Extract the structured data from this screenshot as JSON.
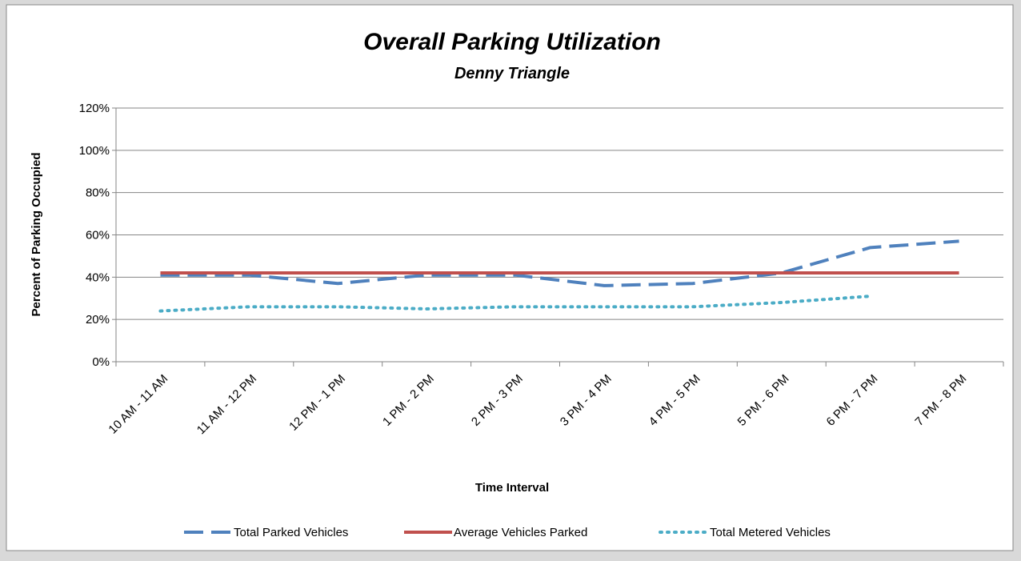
{
  "chart_data": {
    "type": "line",
    "title": "Overall Parking Utilization",
    "subtitle": "Denny Triangle",
    "x_label": "Time Interval",
    "y_label": "Percent of Parking Occupied",
    "categories": [
      "10 AM - 11 AM",
      "11 AM - 12 PM",
      "12 PM - 1 PM",
      "1 PM - 2 PM",
      "2 PM - 3 PM",
      "3 PM - 4 PM",
      "4 PM - 5 PM",
      "5 PM - 6 PM",
      "6 PM - 7 PM",
      "7 PM - 8 PM"
    ],
    "series": [
      {
        "name": "Total Parked Vehicles",
        "color": "#4f81bd",
        "dash": "dashed",
        "values": [
          41,
          41,
          37,
          41,
          41,
          36,
          37,
          42,
          54,
          57
        ]
      },
      {
        "name": "Average Vehicles Parked",
        "color": "#c0504d",
        "dash": "solid",
        "values": [
          42,
          42,
          42,
          42,
          42,
          42,
          42,
          42,
          42,
          42
        ]
      },
      {
        "name": "Total Metered Vehicles",
        "color": "#4bacc6",
        "dash": "dotted",
        "values": [
          24,
          26,
          26,
          25,
          26,
          26,
          26,
          28,
          31,
          null
        ]
      }
    ],
    "ylim": [
      0,
      120
    ],
    "yticks": [
      {
        "value": 0,
        "label": "0%"
      },
      {
        "value": 20,
        "label": "20%"
      },
      {
        "value": 40,
        "label": "40%"
      },
      {
        "value": 60,
        "label": "60%"
      },
      {
        "value": 80,
        "label": "80%"
      },
      {
        "value": 100,
        "label": "100%"
      },
      {
        "value": 120,
        "label": "120%"
      }
    ],
    "grid": true,
    "legend": "bottom"
  }
}
